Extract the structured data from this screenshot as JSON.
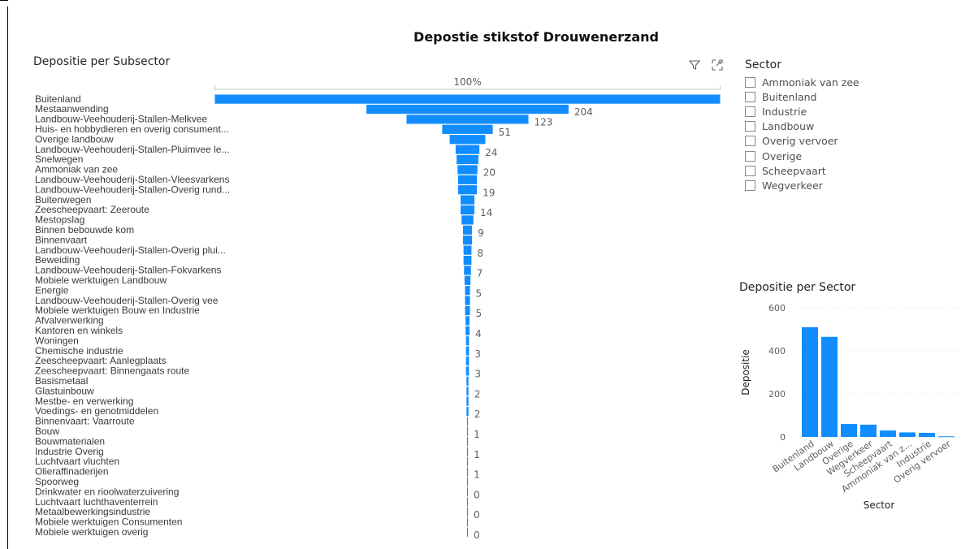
{
  "report_title": "Depostie stikstof Drouwenerzand",
  "funnel_title": "Depositie per Subsector",
  "icons": {
    "filter": "filter-icon",
    "focus": "focus-mode-icon"
  },
  "slicer": {
    "title": "Sector",
    "items": [
      "Ammoniak van zee",
      "Buitenland",
      "Industrie",
      "Landbouw",
      "Overig vervoer",
      "Overige",
      "Scheepvaart",
      "Wegverkeer"
    ]
  },
  "colors": {
    "bar": "#118DFF",
    "axis_line": "#c8c6c4",
    "grid": "#e1dfdd",
    "label": "#605e5c"
  },
  "chart_data": [
    {
      "type": "bar",
      "orientation": "funnel",
      "top_label": "100%",
      "categories": [
        "Buitenland",
        "Mestaanwending",
        "Landbouw-Veehouderij-Stallen-Melkvee",
        "Huis- en hobbydieren en overig consument...",
        "Overige landbouw",
        "Landbouw-Veehouderij-Stallen-Pluimvee le...",
        "Snelwegen",
        "Ammoniak van zee",
        "Landbouw-Veehouderij-Stallen-Vleesvarkens",
        "Landbouw-Veehouderij-Stallen-Overig rund...",
        "Buitenwegen",
        "Zeescheepvaart: Zeeroute",
        "Mestopslag",
        "Binnen bebouwde kom",
        "Binnenvaart",
        "Landbouw-Veehouderij-Stallen-Overig plui...",
        "Beweiding",
        "Landbouw-Veehouderij-Stallen-Fokvarkens",
        "Mobiele werktuigen Landbouw",
        "Energie",
        "Landbouw-Veehouderij-Stallen-Overig vee",
        "Mobiele werktuigen Bouw en Industrie",
        "Afvalverwerking",
        "Kantoren en winkels",
        "Woningen",
        "Chemische industrie",
        "Zeescheepvaart: Aanlegplaats",
        "Zeescheepvaart: Binnengaats route",
        "Basismetaal",
        "Glastuinbouw",
        "Mestbe- en verwerking",
        "Voedings- en genotmiddelen",
        "Binnenvaart: Vaarroute",
        "Bouw",
        "Bouwmaterialen",
        "Industrie Overig",
        "Luchtvaart vluchten",
        "Olieraffinaderijen",
        "Spoorweg",
        "Drinkwater en rioolwaterzuivering",
        "Luchtvaart luchthaventerrein",
        "Metaalbewerkingsindustrie",
        "Mobiele werktuigen Consumenten",
        "Mobiele werktuigen overig"
      ],
      "values": [
        510,
        204,
        123,
        51,
        36,
        24,
        22,
        20,
        19,
        19,
        14,
        14,
        12,
        9,
        9,
        8,
        8,
        7,
        6,
        5,
        5,
        5,
        4,
        4,
        3,
        3,
        3,
        3,
        2,
        2,
        2,
        2,
        1,
        1,
        1,
        1,
        1,
        1,
        0.6,
        0.4,
        0.3,
        0.3,
        0.2,
        0.2
      ],
      "data_labels": [
        "",
        "204",
        "123",
        "51",
        "",
        "24",
        "",
        "20",
        "",
        "19",
        "",
        "14",
        "",
        "9",
        "",
        "8",
        "",
        "7",
        "",
        "5",
        "",
        "5",
        "",
        "4",
        "",
        "3",
        "",
        "3",
        "",
        "2",
        "",
        "2",
        "",
        "1",
        "",
        "1",
        "",
        "1",
        "",
        "0",
        "",
        "0",
        "",
        "0"
      ]
    },
    {
      "type": "bar",
      "title": "Depositie per Sector",
      "xlabel": "Sector",
      "ylabel": "Depositie",
      "categories": [
        "Buitenland",
        "Landbouw",
        "Overige",
        "Wegverkeer",
        "Scheepvaart",
        "Ammoniak van z...",
        "Industrie",
        "Overig vervoer"
      ],
      "values": [
        510,
        465,
        60,
        57,
        30,
        21,
        19,
        3
      ],
      "ylim": [
        0,
        600
      ],
      "yticks": [
        "0",
        "200",
        "400",
        "600"
      ]
    }
  ]
}
